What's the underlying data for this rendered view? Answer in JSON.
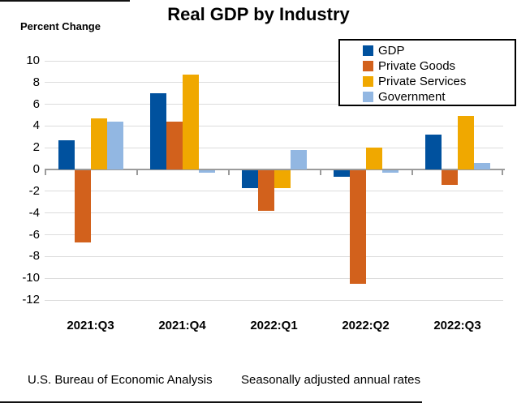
{
  "header": {
    "title": "Real GDP by Industry",
    "y_axis_title": "Percent Change"
  },
  "footer": {
    "source": "U.S. Bureau of Economic Analysis",
    "note": "Seasonally adjusted annual rates"
  },
  "colors": {
    "gdp": "#00519E",
    "private_goods": "#D2611C",
    "private_services": "#F0A800",
    "government": "#92B7E2",
    "gridline": "#DCDCDC",
    "axis": "#9B9B9B",
    "legend_border": "#000000"
  },
  "chart_data": {
    "type": "bar",
    "title": "Real GDP by Industry",
    "ylabel": "Percent Change",
    "xlabel": "",
    "categories": [
      "2021:Q3",
      "2021:Q4",
      "2022:Q1",
      "2022:Q2",
      "2022:Q3"
    ],
    "series": [
      {
        "name": "GDP",
        "color": "#00519E",
        "values": [
          2.7,
          7.0,
          -1.6,
          -0.6,
          3.2
        ]
      },
      {
        "name": "Private Goods",
        "color": "#D2611C",
        "values": [
          -6.6,
          4.4,
          -3.7,
          -10.4,
          -1.3
        ]
      },
      {
        "name": "Private Services",
        "color": "#F0A800",
        "values": [
          4.7,
          8.7,
          -1.6,
          2.0,
          4.9
        ]
      },
      {
        "name": "Government",
        "color": "#92B7E2",
        "values": [
          4.4,
          -0.2,
          1.8,
          -0.2,
          0.6
        ]
      }
    ],
    "ylim": [
      -12,
      10
    ],
    "ytick_step": 2,
    "grid": true,
    "legend_position": "top-right",
    "footnotes": [
      "U.S. Bureau of Economic Analysis",
      "Seasonally adjusted annual rates"
    ]
  }
}
